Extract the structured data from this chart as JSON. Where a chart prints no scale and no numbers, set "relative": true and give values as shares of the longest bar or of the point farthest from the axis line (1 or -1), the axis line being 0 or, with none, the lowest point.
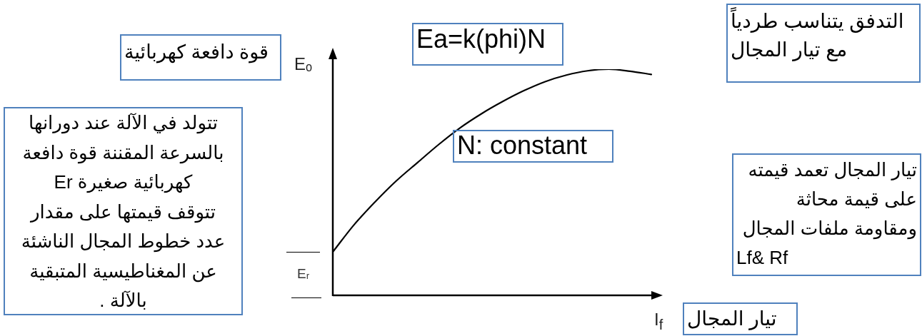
{
  "chart_data": {
    "type": "line",
    "relative": true,
    "tick_labels": false,
    "categories": [
      null,
      null,
      null,
      null,
      null,
      null,
      null,
      null,
      null,
      null,
      null,
      null,
      null,
      null,
      null,
      null
    ],
    "values": [
      0.192,
      0.312,
      0.414,
      0.507,
      0.588,
      0.668,
      0.741,
      0.803,
      0.857,
      0.905,
      0.945,
      0.974,
      0.993,
      1,
      0.991,
      0.977
    ],
    "color": "#000000",
    "xlabel": "I$_{f}$",
    "ylabel": "Eₒ",
    "annotations": [
      "قوة دافعة كهربائية",
      "Ea=k(phi)N",
      "التدفق يتناسب طردياً\nمع تيار المجال",
      "تتولد في الآلة عند دورانها\nبالسرعة المقننة قوة دافعة\nكهربائية صغيرة Er\nتتوقف قيمتها على مقدار\nعدد خطوط المجال الناشئة\nعن المغناطيسية المتبقية\nبالآلة .",
      "N: constant",
      "تيار المجال تعمد قيمته\nعلى قيمة محاثة\nومقاومة ملفات المجال\nLf& Rf",
      "تيار المجال",
      "Eᵣ"
    ]
  }
}
